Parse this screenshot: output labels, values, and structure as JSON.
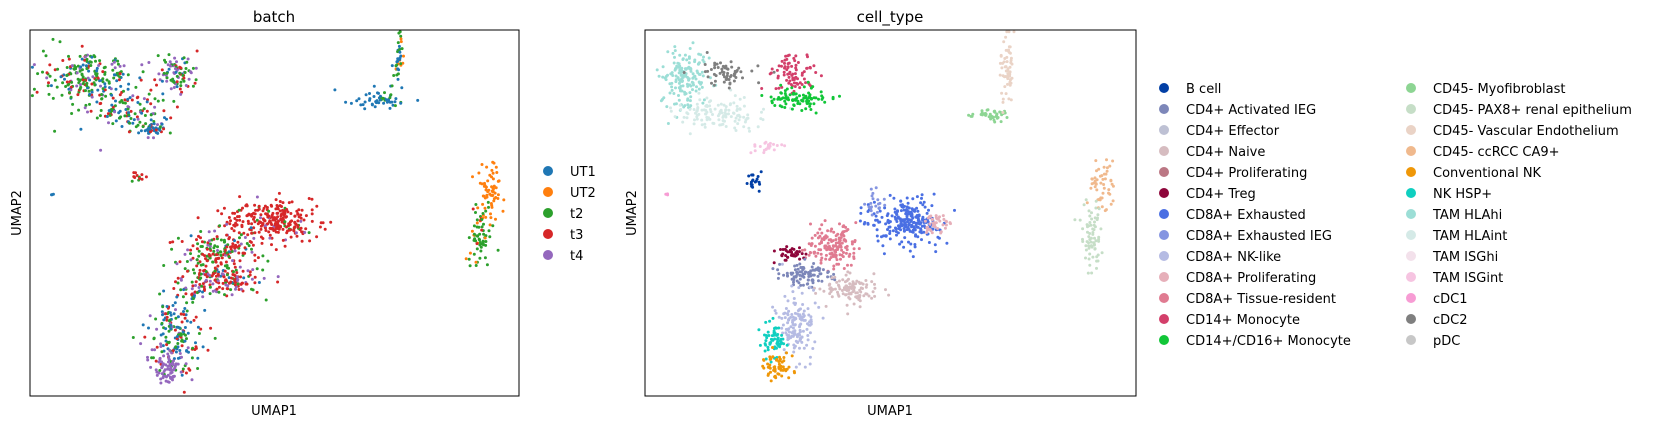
{
  "chart_data": [
    {
      "type": "scatter",
      "title": "batch",
      "xlabel": "UMAP1",
      "ylabel": "UMAP2",
      "grid": false,
      "legend_placement": "right",
      "legend_columns": 1,
      "series": [
        {
          "name": "UT1",
          "color": "#1f77b4"
        },
        {
          "name": "UT2",
          "color": "#ff7f0e"
        },
        {
          "name": "t2",
          "color": "#2ca02c"
        },
        {
          "name": "t3",
          "color": "#d62728"
        },
        {
          "name": "t4",
          "color": "#9467bd"
        }
      ],
      "clusters": [
        {
          "x": 0.12,
          "y": 0.87,
          "sx": 0.045,
          "sy": 0.035,
          "n": 220,
          "mix": [
            0.2,
            0,
            0.5,
            0.2,
            0.1
          ]
        },
        {
          "x": 0.2,
          "y": 0.78,
          "sx": 0.04,
          "sy": 0.03,
          "n": 120,
          "mix": [
            0.25,
            0,
            0.4,
            0.25,
            0.1
          ]
        },
        {
          "x": 0.25,
          "y": 0.73,
          "sx": 0.02,
          "sy": 0.012,
          "n": 40,
          "mix": [
            0.6,
            0,
            0.2,
            0.1,
            0.1
          ]
        },
        {
          "x": 0.3,
          "y": 0.88,
          "sx": 0.02,
          "sy": 0.03,
          "n": 90,
          "mix": [
            0.2,
            0,
            0.3,
            0.15,
            0.35
          ]
        },
        {
          "x": 0.22,
          "y": 0.6,
          "sx": 0.006,
          "sy": 0.01,
          "n": 12,
          "mix": [
            0,
            0,
            0.5,
            0.5,
            0
          ]
        },
        {
          "x": 0.72,
          "y": 0.81,
          "sx": 0.025,
          "sy": 0.012,
          "n": 50,
          "mix": [
            0.75,
            0,
            0.25,
            0,
            0
          ]
        },
        {
          "x": 0.75,
          "y": 0.92,
          "sx": 0.006,
          "sy": 0.04,
          "n": 40,
          "mix": [
            0.6,
            0.1,
            0.3,
            0,
            0
          ]
        },
        {
          "x": 0.94,
          "y": 0.56,
          "sx": 0.012,
          "sy": 0.035,
          "n": 60,
          "mix": [
            0,
            1,
            0,
            0,
            0
          ]
        },
        {
          "x": 0.92,
          "y": 0.44,
          "sx": 0.012,
          "sy": 0.04,
          "n": 70,
          "mix": [
            0,
            0.15,
            0.8,
            0.05,
            0
          ]
        },
        {
          "x": 0.5,
          "y": 0.48,
          "sx": 0.05,
          "sy": 0.03,
          "n": 260,
          "mix": [
            0,
            0,
            0.05,
            0.9,
            0.05
          ]
        },
        {
          "x": 0.38,
          "y": 0.39,
          "sx": 0.04,
          "sy": 0.03,
          "n": 180,
          "mix": [
            0.05,
            0,
            0.4,
            0.45,
            0.1
          ]
        },
        {
          "x": 0.4,
          "y": 0.32,
          "sx": 0.04,
          "sy": 0.02,
          "n": 150,
          "mix": [
            0.1,
            0,
            0.1,
            0.5,
            0.3
          ]
        },
        {
          "x": 0.33,
          "y": 0.28,
          "sx": 0.015,
          "sy": 0.015,
          "n": 30,
          "mix": [
            0.3,
            0,
            0.3,
            0.2,
            0.2
          ]
        },
        {
          "x": 0.3,
          "y": 0.16,
          "sx": 0.03,
          "sy": 0.05,
          "n": 170,
          "mix": [
            0.35,
            0,
            0.3,
            0.25,
            0.1
          ]
        },
        {
          "x": 0.28,
          "y": 0.08,
          "sx": 0.015,
          "sy": 0.025,
          "n": 70,
          "mix": [
            0,
            0,
            0,
            0,
            1
          ]
        },
        {
          "x": 0.045,
          "y": 0.55,
          "sx": 0.002,
          "sy": 0.002,
          "n": 3,
          "mix": [
            1,
            0,
            0,
            0,
            0
          ]
        }
      ]
    },
    {
      "type": "scatter",
      "title": "cell_type",
      "xlabel": "UMAP1",
      "ylabel": "UMAP2",
      "grid": false,
      "legend_placement": "right",
      "legend_columns": 2,
      "series": [
        {
          "name": "B cell",
          "color": "#023fa5"
        },
        {
          "name": "CD4+ Activated IEG",
          "color": "#7d87b9"
        },
        {
          "name": "CD4+ Effector",
          "color": "#bec1d4"
        },
        {
          "name": "CD4+ Naive",
          "color": "#d6bcc0"
        },
        {
          "name": "CD4+ Proliferating",
          "color": "#bb7784"
        },
        {
          "name": "CD4+ Treg",
          "color": "#8e063b"
        },
        {
          "name": "CD8A+ Exhausted",
          "color": "#4a6fe3"
        },
        {
          "name": "CD8A+ Exhausted IEG",
          "color": "#8595e1"
        },
        {
          "name": "CD8A+ NK-like",
          "color": "#b5bbe3"
        },
        {
          "name": "CD8A+ Proliferating",
          "color": "#e6afb9"
        },
        {
          "name": "CD8A+ Tissue-resident",
          "color": "#e07b91"
        },
        {
          "name": "CD14+ Monocyte",
          "color": "#d33f6a"
        },
        {
          "name": "CD14+/CD16+ Monocyte",
          "color": "#11c638"
        },
        {
          "name": "CD45- Myofibroblast",
          "color": "#8dd593"
        },
        {
          "name": "CD45- PAX8+ renal epithelium",
          "color": "#c6dec7"
        },
        {
          "name": "CD45- Vascular Endothelium",
          "color": "#ead3c6"
        },
        {
          "name": "CD45- ccRCC CA9+",
          "color": "#f0b98d"
        },
        {
          "name": "Conventional NK",
          "color": "#ef9708"
        },
        {
          "name": "NK HSP+",
          "color": "#0fcfc0"
        },
        {
          "name": "TAM HLAhi",
          "color": "#9cded6"
        },
        {
          "name": "TAM HLAint",
          "color": "#d5eae7"
        },
        {
          "name": "TAM ISGhi",
          "color": "#f3e1eb"
        },
        {
          "name": "TAM ISGint",
          "color": "#f6c4e1"
        },
        {
          "name": "cDC1",
          "color": "#f79cd4"
        },
        {
          "name": "cDC2",
          "color": "#7f7f7f"
        },
        {
          "name": "pDC",
          "color": "#c7c7c7"
        }
      ],
      "clusters": [
        {
          "s": 19,
          "x": 0.08,
          "y": 0.87,
          "sx": 0.025,
          "sy": 0.04,
          "n": 160
        },
        {
          "s": 20,
          "x": 0.15,
          "y": 0.77,
          "sx": 0.045,
          "sy": 0.025,
          "n": 120
        },
        {
          "s": 24,
          "x": 0.17,
          "y": 0.88,
          "sx": 0.03,
          "sy": 0.018,
          "n": 60
        },
        {
          "s": 11,
          "x": 0.3,
          "y": 0.88,
          "sx": 0.022,
          "sy": 0.025,
          "n": 80
        },
        {
          "s": 12,
          "x": 0.31,
          "y": 0.81,
          "sx": 0.03,
          "sy": 0.015,
          "n": 90
        },
        {
          "s": 22,
          "x": 0.25,
          "y": 0.68,
          "sx": 0.015,
          "sy": 0.008,
          "n": 25
        },
        {
          "s": 0,
          "x": 0.22,
          "y": 0.59,
          "sx": 0.008,
          "sy": 0.012,
          "n": 20
        },
        {
          "s": 23,
          "x": 0.045,
          "y": 0.55,
          "sx": 0.002,
          "sy": 0.002,
          "n": 3
        },
        {
          "s": 13,
          "x": 0.7,
          "y": 0.77,
          "sx": 0.03,
          "sy": 0.008,
          "n": 40
        },
        {
          "s": 15,
          "x": 0.74,
          "y": 0.9,
          "sx": 0.008,
          "sy": 0.05,
          "n": 60
        },
        {
          "s": 16,
          "x": 0.93,
          "y": 0.57,
          "sx": 0.012,
          "sy": 0.035,
          "n": 50
        },
        {
          "s": 14,
          "x": 0.91,
          "y": 0.44,
          "sx": 0.012,
          "sy": 0.045,
          "n": 70
        },
        {
          "s": 6,
          "x": 0.53,
          "y": 0.48,
          "sx": 0.035,
          "sy": 0.03,
          "n": 240
        },
        {
          "s": 7,
          "x": 0.47,
          "y": 0.52,
          "sx": 0.012,
          "sy": 0.02,
          "n": 20
        },
        {
          "s": 9,
          "x": 0.59,
          "y": 0.47,
          "sx": 0.015,
          "sy": 0.015,
          "n": 40
        },
        {
          "s": 10,
          "x": 0.38,
          "y": 0.41,
          "sx": 0.025,
          "sy": 0.03,
          "n": 150
        },
        {
          "s": 5,
          "x": 0.3,
          "y": 0.39,
          "sx": 0.012,
          "sy": 0.01,
          "n": 40
        },
        {
          "s": 1,
          "x": 0.33,
          "y": 0.33,
          "sx": 0.025,
          "sy": 0.015,
          "n": 90
        },
        {
          "s": 3,
          "x": 0.42,
          "y": 0.29,
          "sx": 0.03,
          "sy": 0.02,
          "n": 110
        },
        {
          "s": 8,
          "x": 0.31,
          "y": 0.19,
          "sx": 0.02,
          "sy": 0.05,
          "n": 140
        },
        {
          "s": 18,
          "x": 0.26,
          "y": 0.15,
          "sx": 0.013,
          "sy": 0.025,
          "n": 60
        },
        {
          "s": 17,
          "x": 0.27,
          "y": 0.08,
          "sx": 0.015,
          "sy": 0.018,
          "n": 60
        }
      ]
    }
  ]
}
